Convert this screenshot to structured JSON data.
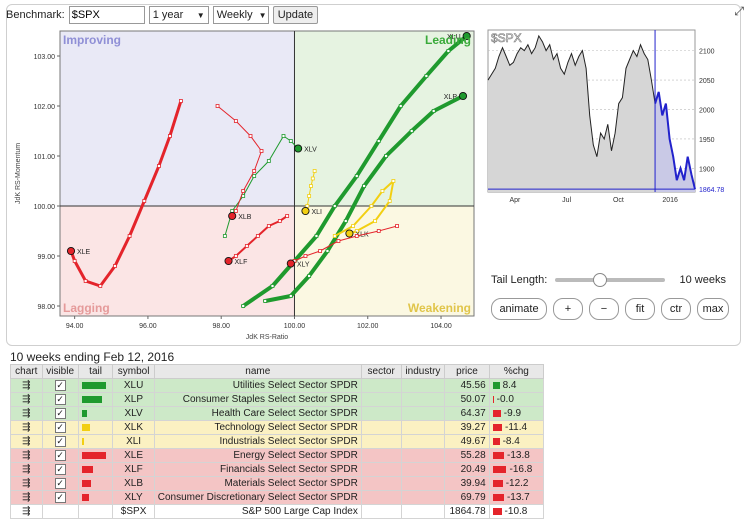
{
  "toolbar": {
    "benchmark_label": "Benchmark:",
    "benchmark_value": "$SPX",
    "period": "1 year",
    "frequency": "Weekly",
    "update_label": "Update",
    "dropdown_arrow": "▼"
  },
  "rrg": {
    "quadrants": {
      "improving": "Improving",
      "leading": "Leading",
      "lagging": "Lagging",
      "weakening": "Weakening"
    },
    "x_label": "JdK RS-Ratio",
    "y_label": "JdK RS-Momentum",
    "x_ticks": [
      "94.00",
      "96.00",
      "98.00",
      "100.00",
      "102.00",
      "104.00"
    ],
    "y_ticks": [
      "103.00",
      "102.00",
      "101.00",
      "100.00",
      "99.00",
      "98.00"
    ],
    "xlim": [
      93.6,
      104.9
    ],
    "ylim": [
      97.8,
      103.5
    ],
    "colors": {
      "improving": "#e9e9f6",
      "leading": "#e6f3e1",
      "lagging": "#fbe5e5",
      "weakening": "#fbf8e2",
      "red": "#e4242b",
      "green": "#1f9a2e",
      "yellow": "#f2cf12"
    },
    "tails": [
      {
        "symbol": "XLU",
        "label": "XLU",
        "color": "#1f9a2e",
        "width": 4,
        "points": [
          [
            98.6,
            98.0
          ],
          [
            99.4,
            98.4
          ],
          [
            100.0,
            98.9
          ],
          [
            100.6,
            99.4
          ],
          [
            101.1,
            100.0
          ],
          [
            101.7,
            100.6
          ],
          [
            102.3,
            101.3
          ],
          [
            102.9,
            102.0
          ],
          [
            103.6,
            102.6
          ],
          [
            104.2,
            103.1
          ],
          [
            104.7,
            103.4
          ]
        ]
      },
      {
        "symbol": "XLP",
        "label": "XLP",
        "color": "#1f9a2e",
        "width": 4,
        "points": [
          [
            99.2,
            98.1
          ],
          [
            99.9,
            98.2
          ],
          [
            100.4,
            98.6
          ],
          [
            100.9,
            99.1
          ],
          [
            101.4,
            99.7
          ],
          [
            101.9,
            100.4
          ],
          [
            102.5,
            101.0
          ],
          [
            103.2,
            101.5
          ],
          [
            103.8,
            101.9
          ],
          [
            104.6,
            102.2
          ]
        ]
      },
      {
        "symbol": "XLV",
        "label": "XLV",
        "color": "#1f9a2e",
        "width": 1,
        "points": [
          [
            98.1,
            99.4
          ],
          [
            98.3,
            99.9
          ],
          [
            98.6,
            100.2
          ],
          [
            98.9,
            100.6
          ],
          [
            99.3,
            100.9
          ],
          [
            99.7,
            101.4
          ],
          [
            99.9,
            101.3
          ],
          [
            100.1,
            101.15
          ]
        ]
      },
      {
        "symbol": "XLK",
        "label": "XLK",
        "color": "#f2cf12",
        "width": 2,
        "points": [
          [
            101.1,
            99.4
          ],
          [
            101.6,
            99.6
          ],
          [
            102.1,
            100.0
          ],
          [
            102.4,
            100.3
          ],
          [
            102.7,
            100.5
          ],
          [
            102.6,
            100.1
          ],
          [
            102.2,
            99.7
          ],
          [
            101.7,
            99.5
          ],
          [
            101.5,
            99.45
          ]
        ]
      },
      {
        "symbol": "XLI",
        "label": "XLI",
        "color": "#f2cf12",
        "width": 1,
        "points": [
          [
            100.55,
            100.7
          ],
          [
            100.5,
            100.55
          ],
          [
            100.45,
            100.4
          ],
          [
            100.4,
            100.2
          ],
          [
            100.35,
            100.0
          ],
          [
            100.3,
            99.9
          ]
        ]
      },
      {
        "symbol": "XLE",
        "label": "XLE",
        "color": "#e4242b",
        "width": 3,
        "points": [
          [
            96.9,
            102.1
          ],
          [
            96.6,
            101.4
          ],
          [
            96.3,
            100.8
          ],
          [
            95.9,
            100.1
          ],
          [
            95.5,
            99.4
          ],
          [
            95.1,
            98.8
          ],
          [
            94.7,
            98.4
          ],
          [
            94.3,
            98.5
          ],
          [
            94.0,
            98.9
          ],
          [
            93.9,
            99.1
          ]
        ]
      },
      {
        "symbol": "XLF",
        "label": "XLF",
        "color": "#e4242b",
        "width": 2,
        "points": [
          [
            99.8,
            99.8
          ],
          [
            99.6,
            99.7
          ],
          [
            99.3,
            99.6
          ],
          [
            99.0,
            99.4
          ],
          [
            98.7,
            99.2
          ],
          [
            98.4,
            99.0
          ],
          [
            98.2,
            98.9
          ]
        ]
      },
      {
        "symbol": "XLB",
        "label": "XLB",
        "color": "#e4242b",
        "width": 1,
        "points": [
          [
            97.9,
            102.0
          ],
          [
            98.4,
            101.7
          ],
          [
            98.8,
            101.4
          ],
          [
            99.1,
            101.1
          ],
          [
            98.9,
            100.7
          ],
          [
            98.6,
            100.3
          ],
          [
            98.4,
            99.9
          ],
          [
            98.3,
            99.8
          ]
        ]
      },
      {
        "symbol": "XLY",
        "label": "XLY",
        "color": "#e4242b",
        "width": 1,
        "points": [
          [
            102.8,
            99.6
          ],
          [
            102.3,
            99.5
          ],
          [
            101.7,
            99.4
          ],
          [
            101.2,
            99.3
          ],
          [
            100.7,
            99.1
          ],
          [
            100.3,
            99.0
          ],
          [
            100.0,
            98.9
          ],
          [
            99.9,
            98.85
          ]
        ]
      }
    ]
  },
  "mini_chart": {
    "title": "$SPX",
    "y_ticks": [
      "2100",
      "2050",
      "2000",
      "1950",
      "1900",
      "1864.78"
    ],
    "x_ticks": [
      "Apr",
      "Jul",
      "Oct",
      "2016"
    ],
    "ylim": [
      1860,
      2135
    ],
    "closes": [
      2050,
      2060,
      2070,
      2090,
      2105,
      2090,
      2075,
      2080,
      2095,
      2105,
      2100,
      2110,
      2095,
      2105,
      2125,
      2115,
      2100,
      2110,
      2085,
      2095,
      2070,
      2060,
      2080,
      2095,
      2075,
      2090,
      2100,
      2070,
      1990,
      1940,
      1920,
      1960,
      1950,
      1975,
      1930,
      1960,
      2010,
      2020,
      2070,
      2085,
      2100,
      2090,
      2110,
      2095,
      2085,
      2050,
      2010,
      2030,
      1990,
      2010,
      1950,
      1920,
      1880,
      1900,
      1880,
      1920,
      1890,
      1864.78
    ],
    "highlight_from": 46
  },
  "tail_length": {
    "label": "Tail Length:",
    "value": "10 weeks",
    "fraction": 0.4
  },
  "buttons": {
    "animate": "animate",
    "plus": "+",
    "minus": "−",
    "fit": "fit",
    "ctr": "ctr",
    "max": "max"
  },
  "caption": "10 weeks ending Feb 12, 2016",
  "table": {
    "headers": {
      "chart": "chart",
      "visible": "visible",
      "tail": "tail",
      "symbol": "symbol",
      "name": "name",
      "sector": "sector",
      "industry": "industry",
      "price": "price",
      "chg": "%chg"
    },
    "rows": [
      {
        "symbol": "XLU",
        "name": "Utilities Select Sector SPDR",
        "price": "45.56",
        "chg": "8.4",
        "chg_value": 8.4,
        "tail": 1.0,
        "quadrant": "leading",
        "tail_color": "#1f9a2e"
      },
      {
        "symbol": "XLP",
        "name": "Consumer Staples Select Sector SPDR",
        "price": "50.07",
        "chg": "-0.0",
        "chg_value": -0.0,
        "tail": 0.85,
        "quadrant": "leading",
        "tail_color": "#1f9a2e"
      },
      {
        "symbol": "XLV",
        "name": "Health Care Select Sector SPDR",
        "price": "64.37",
        "chg": "-9.9",
        "chg_value": -9.9,
        "tail": 0.2,
        "quadrant": "leading",
        "tail_color": "#1f9a2e"
      },
      {
        "symbol": "XLK",
        "name": "Technology Select Sector SPDR",
        "price": "39.27",
        "chg": "-11.4",
        "chg_value": -11.4,
        "tail": 0.35,
        "quadrant": "weakening",
        "tail_color": "#f2cf12"
      },
      {
        "symbol": "XLI",
        "name": "Industrials Select Sector SPDR",
        "price": "49.67",
        "chg": "-8.4",
        "chg_value": -8.4,
        "tail": 0.1,
        "quadrant": "weakening",
        "tail_color": "#f2cf12"
      },
      {
        "symbol": "XLE",
        "name": "Energy Select Sector SPDR",
        "price": "55.28",
        "chg": "-13.8",
        "chg_value": -13.8,
        "tail": 1.0,
        "quadrant": "lagging",
        "tail_color": "#e4242b"
      },
      {
        "symbol": "XLF",
        "name": "Financials Select Sector SPDR",
        "price": "20.49",
        "chg": "-16.8",
        "chg_value": -16.8,
        "tail": 0.45,
        "quadrant": "lagging",
        "tail_color": "#e4242b"
      },
      {
        "symbol": "XLB",
        "name": "Materials Select Sector SPDR",
        "price": "39.94",
        "chg": "-12.2",
        "chg_value": -12.2,
        "tail": 0.4,
        "quadrant": "lagging",
        "tail_color": "#e4242b"
      },
      {
        "symbol": "XLY",
        "name": "Consumer Discretionary Select Sector SPDR",
        "price": "69.79",
        "chg": "-13.7",
        "chg_value": -13.7,
        "tail": 0.3,
        "quadrant": "lagging",
        "tail_color": "#e4242b"
      }
    ],
    "benchmark_row": {
      "symbol": "$SPX",
      "name": "S&P 500 Large Cap Index",
      "price": "1864.78",
      "chg": "-10.8",
      "chg_value": -10.8
    }
  }
}
